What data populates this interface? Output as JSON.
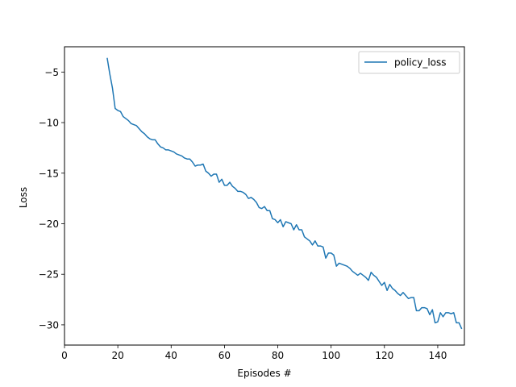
{
  "chart_data": {
    "type": "line",
    "title": "",
    "xlabel": "Episodes #",
    "ylabel": "Loss",
    "xlim": [
      0,
      150
    ],
    "ylim": [
      -32,
      -2.5
    ],
    "xticks": [
      0,
      20,
      40,
      60,
      80,
      100,
      120,
      140
    ],
    "yticks": [
      -30,
      -25,
      -20,
      -15,
      -10,
      -5
    ],
    "grid": false,
    "legend": {
      "position": "upper-right"
    },
    "colors": {
      "series": "#1f77b4",
      "axes": "#000000",
      "legend_border": "#cccccc"
    },
    "series": [
      {
        "name": "policy_loss",
        "x": [
          16,
          17,
          18,
          19,
          20,
          21,
          22,
          23,
          24,
          25,
          26,
          27,
          28,
          29,
          30,
          31,
          32,
          33,
          34,
          35,
          36,
          37,
          38,
          39,
          40,
          41,
          42,
          43,
          44,
          45,
          46,
          47,
          48,
          49,
          50,
          51,
          52,
          53,
          54,
          55,
          56,
          57,
          58,
          59,
          60,
          61,
          62,
          63,
          64,
          65,
          66,
          67,
          68,
          69,
          70,
          71,
          72,
          73,
          74,
          75,
          76,
          77,
          78,
          79,
          80,
          81,
          82,
          83,
          84,
          85,
          86,
          87,
          88,
          89,
          90,
          91,
          92,
          93,
          94,
          95,
          96,
          97,
          98,
          99,
          100,
          101,
          102,
          103,
          104,
          105,
          106,
          107,
          108,
          109,
          110,
          111,
          112,
          113,
          114,
          115,
          116,
          117,
          118,
          119,
          120,
          121,
          122,
          123,
          124,
          125,
          126,
          127,
          128,
          129,
          130,
          131,
          132,
          133,
          134,
          135,
          136,
          137,
          138,
          139,
          140,
          141,
          142,
          143,
          144,
          145,
          146,
          147,
          148,
          149
        ],
        "y": [
          -3.6,
          -5.2,
          -6.6,
          -8.6,
          -8.8,
          -8.9,
          -9.4,
          -9.6,
          -9.8,
          -10.1,
          -10.2,
          -10.3,
          -10.6,
          -10.9,
          -11.1,
          -11.4,
          -11.6,
          -11.7,
          -11.7,
          -12.1,
          -12.4,
          -12.5,
          -12.7,
          -12.7,
          -12.8,
          -12.9,
          -13.1,
          -13.2,
          -13.3,
          -13.5,
          -13.6,
          -13.6,
          -13.9,
          -14.3,
          -14.2,
          -14.2,
          -14.1,
          -14.8,
          -15.0,
          -15.3,
          -15.1,
          -15.1,
          -15.9,
          -15.6,
          -16.2,
          -16.2,
          -15.9,
          -16.3,
          -16.5,
          -16.8,
          -16.8,
          -16.9,
          -17.1,
          -17.5,
          -17.4,
          -17.6,
          -17.9,
          -18.4,
          -18.5,
          -18.3,
          -18.7,
          -18.7,
          -19.5,
          -19.6,
          -19.9,
          -19.6,
          -20.3,
          -19.8,
          -19.9,
          -20.0,
          -20.6,
          -20.1,
          -20.6,
          -20.6,
          -21.3,
          -21.5,
          -21.7,
          -22.1,
          -21.7,
          -22.2,
          -22.2,
          -22.3,
          -23.4,
          -22.9,
          -22.9,
          -23.1,
          -24.2,
          -23.9,
          -24.0,
          -24.1,
          -24.2,
          -24.4,
          -24.7,
          -24.9,
          -25.1,
          -24.9,
          -25.1,
          -25.3,
          -25.6,
          -24.8,
          -25.1,
          -25.3,
          -25.7,
          -26.1,
          -25.8,
          -26.6,
          -26.0,
          -26.4,
          -26.6,
          -26.9,
          -27.1,
          -26.8,
          -27.1,
          -27.4,
          -27.3,
          -27.3,
          -28.6,
          -28.6,
          -28.3,
          -28.3,
          -28.4,
          -29.0,
          -28.5,
          -29.8,
          -29.7,
          -28.8,
          -29.2,
          -28.8,
          -28.8,
          -28.9,
          -28.8,
          -29.8,
          -29.8,
          -30.4
        ]
      }
    ]
  }
}
